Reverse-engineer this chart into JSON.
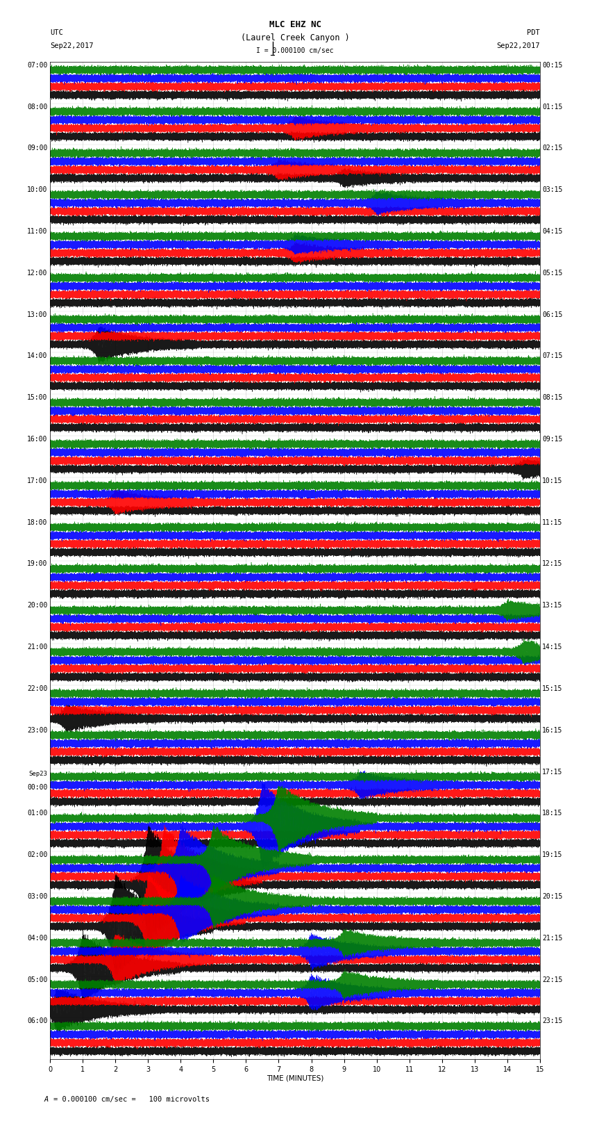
{
  "title_line1": "MLC EHZ NC",
  "title_line2": "(Laurel Creek Canyon )",
  "scale_text": "I = 0.000100 cm/sec",
  "utc_label": "UTC",
  "pdt_label": "PDT",
  "date_left": "Sep22,2017",
  "date_right": "Sep22,2017",
  "xlabel": "TIME (MINUTES)",
  "footnote": "= 0.000100 cm/sec =   100 microvolts",
  "bg_color": "#ffffff",
  "trace_colors": [
    "#000000",
    "#ff0000",
    "#0000ff",
    "#008000"
  ],
  "left_times": [
    "07:00",
    "08:00",
    "09:00",
    "10:00",
    "11:00",
    "12:00",
    "13:00",
    "14:00",
    "15:00",
    "16:00",
    "17:00",
    "18:00",
    "19:00",
    "20:00",
    "21:00",
    "22:00",
    "23:00",
    "SEP23_00:00",
    "01:00",
    "02:00",
    "03:00",
    "04:00",
    "05:00",
    "06:00"
  ],
  "right_times": [
    "00:15",
    "01:15",
    "02:15",
    "03:15",
    "04:15",
    "05:15",
    "06:15",
    "07:15",
    "08:15",
    "09:15",
    "10:15",
    "11:15",
    "12:15",
    "13:15",
    "14:15",
    "15:15",
    "16:15",
    "17:15",
    "18:15",
    "19:15",
    "20:15",
    "21:15",
    "22:15",
    "23:15"
  ],
  "num_rows": 24,
  "traces_per_row": 4,
  "minutes_per_row": 15,
  "xmin": 0,
  "xmax": 15,
  "figwidth": 8.5,
  "figheight": 16.13,
  "dpi": 100,
  "grid_color": "#cccccc",
  "title_fontsize": 9,
  "label_fontsize": 7.5,
  "tick_fontsize": 7,
  "trace_amplitude": 0.35,
  "noise_seed": 42
}
